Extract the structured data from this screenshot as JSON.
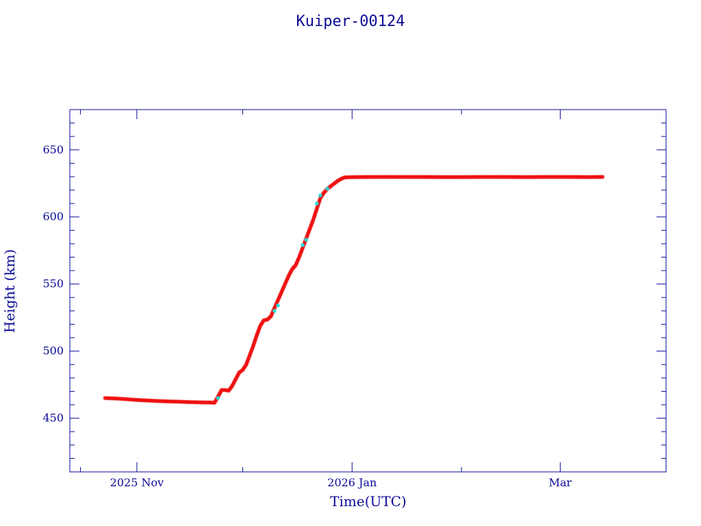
{
  "chart_data": {
    "type": "scatter",
    "title": "Kuiper-00124",
    "xlabel": "Time(UTC)",
    "ylabel": "Height (km)",
    "x_tick_labels": [
      {
        "label": "2025 Nov",
        "date": "2025-11-01"
      },
      {
        "label": "2026 Jan",
        "date": "2026-01-01"
      },
      {
        "label": "Mar",
        "date": "2026-03-01"
      }
    ],
    "xlim": [
      "2025-10-13",
      "2026-03-31"
    ],
    "ylim": [
      410,
      680
    ],
    "y_ticks": [
      450,
      500,
      550,
      600,
      650
    ],
    "grid": false,
    "colors": {
      "axis": "#0a0a96",
      "points": "#ee1111",
      "highlight_points": "#22dddd",
      "line": "#555555"
    },
    "series": [
      {
        "points": [
          [
            "2025-10-23",
            465
          ],
          [
            "2025-10-26",
            464.7
          ],
          [
            "2025-10-29",
            464.2
          ],
          [
            "2025-11-01",
            463.6
          ],
          [
            "2025-11-04",
            463.2
          ],
          [
            "2025-11-07",
            462.8
          ],
          [
            "2025-11-10",
            462.5
          ],
          [
            "2025-11-13",
            462.3
          ],
          [
            "2025-11-16",
            462.0
          ],
          [
            "2025-11-19",
            461.8
          ],
          [
            "2025-11-22",
            461.7
          ],
          [
            "2025-11-23",
            461.5
          ],
          [
            "2025-11-24",
            466
          ],
          [
            "2025-11-25",
            471
          ],
          [
            "2025-11-26",
            471
          ],
          [
            "2025-11-27",
            470.5
          ],
          [
            "2025-11-28",
            474
          ],
          [
            "2025-11-29",
            479
          ],
          [
            "2025-11-30",
            484
          ],
          [
            "2025-12-01",
            486
          ],
          [
            "2025-12-02",
            490
          ],
          [
            "2025-12-03",
            497
          ],
          [
            "2025-12-04",
            504
          ],
          [
            "2025-12-05",
            512
          ],
          [
            "2025-12-06",
            519
          ],
          [
            "2025-12-07",
            523
          ],
          [
            "2025-12-08",
            523.5
          ],
          [
            "2025-12-09",
            526
          ],
          [
            "2025-12-10",
            532
          ],
          [
            "2025-12-11",
            538
          ],
          [
            "2025-12-12",
            544
          ],
          [
            "2025-12-13",
            550
          ],
          [
            "2025-12-14",
            556
          ],
          [
            "2025-12-15",
            561
          ],
          [
            "2025-12-16",
            564
          ],
          [
            "2025-12-17",
            570
          ],
          [
            "2025-12-18",
            577
          ],
          [
            "2025-12-19",
            584
          ],
          [
            "2025-12-20",
            591
          ],
          [
            "2025-12-21",
            598
          ],
          [
            "2025-12-22",
            606
          ],
          [
            "2025-12-23",
            614
          ],
          [
            "2025-12-24",
            618
          ],
          [
            "2025-12-25",
            621
          ],
          [
            "2025-12-26",
            623
          ],
          [
            "2025-12-27",
            625
          ],
          [
            "2025-12-28",
            627
          ],
          [
            "2025-12-29",
            628.5
          ],
          [
            "2025-12-30",
            629.5
          ],
          [
            "2026-01-02",
            629.7
          ],
          [
            "2026-01-08",
            629.8
          ],
          [
            "2026-01-14",
            629.8
          ],
          [
            "2026-01-20",
            629.8
          ],
          [
            "2026-01-26",
            629.7
          ],
          [
            "2026-02-01",
            629.7
          ],
          [
            "2026-02-07",
            629.8
          ],
          [
            "2026-02-13",
            629.8
          ],
          [
            "2026-02-19",
            629.7
          ],
          [
            "2026-02-25",
            629.8
          ],
          [
            "2026-03-03",
            629.8
          ],
          [
            "2026-03-09",
            629.7
          ],
          [
            "2026-03-13",
            629.8
          ]
        ],
        "highlight_points": [
          [
            "2025-11-24",
            465
          ],
          [
            "2025-12-10",
            530
          ],
          [
            "2025-12-11",
            534
          ],
          [
            "2025-12-18",
            579
          ],
          [
            "2025-12-19",
            583
          ],
          [
            "2025-12-22",
            610
          ],
          [
            "2025-12-23",
            616
          ],
          [
            "2025-12-25",
            621
          ]
        ]
      }
    ]
  }
}
